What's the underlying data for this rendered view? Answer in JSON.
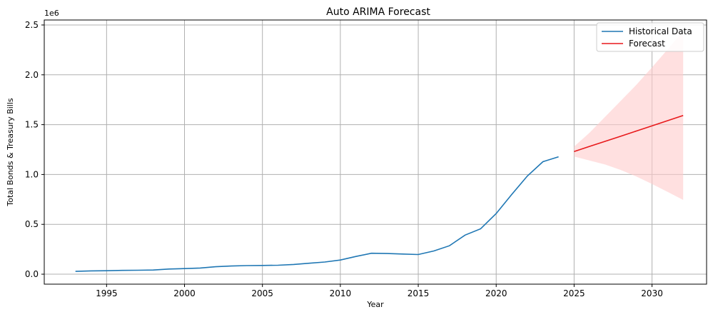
{
  "chart_data": {
    "type": "line",
    "title": "Auto ARIMA Forecast",
    "xlabel": "Year",
    "ylabel": "Total Bonds & Treasury Bills",
    "y_multiplier_label": "1e6",
    "xlim": [
      1991,
      2033.5
    ],
    "ylim": [
      -100000,
      2550000
    ],
    "x_ticks": [
      1995,
      2000,
      2005,
      2010,
      2015,
      2020,
      2025,
      2030
    ],
    "y_ticks": [
      0,
      500000,
      1000000,
      1500000,
      2000000,
      2500000
    ],
    "y_tick_labels": [
      "0.0",
      "0.5",
      "1.0",
      "1.5",
      "2.0",
      "2.5"
    ],
    "grid": true,
    "legend_position": "top-right",
    "colors": {
      "historical": "#1f77b4",
      "forecast": "#e8191b",
      "confidence_band": "#ffcccc",
      "grid": "#b0b0b0"
    },
    "series": [
      {
        "name": "Historical Data",
        "x": [
          1993,
          1994,
          1995,
          1996,
          1997,
          1998,
          1999,
          2000,
          2001,
          2002,
          2003,
          2004,
          2005,
          2006,
          2007,
          2008,
          2009,
          2010,
          2011,
          2012,
          2013,
          2014,
          2015,
          2016,
          2017,
          2018,
          2019,
          2020,
          2021,
          2022,
          2023,
          2024
        ],
        "y": [
          28000,
          33000,
          35000,
          38000,
          40000,
          42000,
          52000,
          56000,
          62000,
          75000,
          82000,
          86000,
          88000,
          90000,
          98000,
          110000,
          122000,
          142000,
          178000,
          210000,
          207000,
          202000,
          197000,
          233000,
          285000,
          392000,
          455000,
          608000,
          800000,
          985000,
          1128000,
          1178000
        ]
      },
      {
        "name": "Forecast",
        "x": [
          2025,
          2026,
          2027,
          2028,
          2029,
          2030,
          2031,
          2032
        ],
        "y": [
          1230000,
          1282000,
          1333000,
          1385000,
          1436000,
          1488000,
          1540000,
          1592000
        ],
        "lower": [
          1180000,
          1140000,
          1100000,
          1045000,
          980000,
          905000,
          825000,
          745000
        ],
        "upper": [
          1280000,
          1420000,
          1580000,
          1740000,
          1900000,
          2075000,
          2255000,
          2440000
        ]
      }
    ]
  }
}
